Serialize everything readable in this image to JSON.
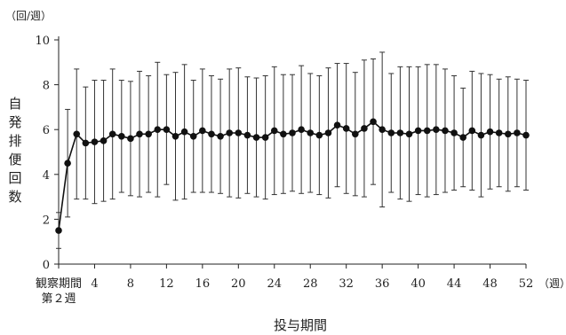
{
  "chart_data": {
    "type": "line",
    "y_unit": "（回/週）",
    "x_unit": "（週）",
    "ylabel": "自発排便回数",
    "xlabel": "投与期間",
    "ylim": [
      0,
      10
    ],
    "xlim": [
      0,
      52
    ],
    "y_ticks": [
      0,
      2,
      4,
      6,
      8,
      10
    ],
    "x_ticks": [
      4,
      8,
      12,
      16,
      20,
      24,
      28,
      32,
      36,
      40,
      44,
      48,
      52
    ],
    "observation_label": [
      "観察期間",
      "第２週"
    ],
    "grid": false,
    "series": [
      {
        "x": [
          0,
          1,
          2,
          3,
          4,
          5,
          6,
          7,
          8,
          9,
          10,
          11,
          12,
          13,
          14,
          15,
          16,
          17,
          18,
          19,
          20,
          21,
          22,
          23,
          24,
          25,
          26,
          27,
          28,
          29,
          30,
          31,
          32,
          33,
          34,
          35,
          36,
          37,
          38,
          39,
          40,
          41,
          42,
          43,
          44,
          45,
          46,
          47,
          48,
          49,
          50,
          51,
          52
        ],
        "mean": [
          1.5,
          4.5,
          5.8,
          5.4,
          5.45,
          5.5,
          5.8,
          5.7,
          5.6,
          5.8,
          5.8,
          6.0,
          6.0,
          5.7,
          5.9,
          5.7,
          5.95,
          5.8,
          5.7,
          5.85,
          5.85,
          5.75,
          5.65,
          5.65,
          5.95,
          5.8,
          5.85,
          6.0,
          5.85,
          5.75,
          5.85,
          6.2,
          6.05,
          5.8,
          6.05,
          6.35,
          6.0,
          5.85,
          5.85,
          5.8,
          5.95,
          5.95,
          6.0,
          5.95,
          5.85,
          5.65,
          5.95,
          5.75,
          5.9,
          5.85,
          5.8,
          5.85,
          5.75
        ],
        "sd": [
          0.8,
          2.4,
          2.9,
          2.5,
          2.75,
          2.7,
          2.9,
          2.5,
          2.55,
          2.8,
          2.6,
          3.0,
          2.45,
          2.85,
          3.0,
          2.5,
          2.75,
          2.6,
          2.55,
          2.85,
          2.9,
          2.6,
          2.65,
          2.75,
          2.85,
          2.65,
          2.6,
          2.85,
          2.65,
          2.65,
          2.9,
          2.75,
          2.9,
          2.75,
          3.05,
          2.8,
          3.45,
          2.65,
          2.95,
          3.0,
          2.85,
          2.95,
          2.9,
          2.75,
          2.55,
          2.2,
          2.65,
          2.75,
          2.55,
          2.4,
          2.55,
          2.4,
          2.45
        ]
      }
    ]
  }
}
